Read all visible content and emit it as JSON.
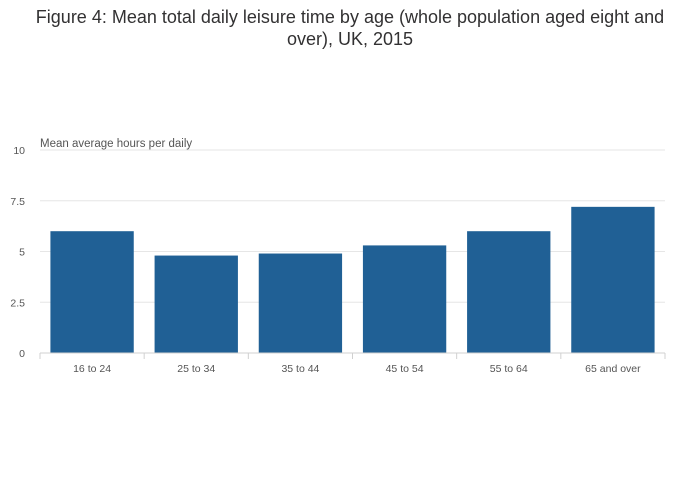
{
  "chart_data": {
    "type": "bar",
    "title": "Figure 4: Mean total daily leisure time by age (whole population aged eight and over), UK, 2015",
    "xlabel": "",
    "ylabel": "Mean average hours per daily",
    "categories": [
      "16 to 24",
      "25 to 34",
      "35 to 44",
      "45 to 54",
      "55 to 64",
      "65 and over"
    ],
    "values": [
      6.0,
      4.8,
      4.9,
      5.3,
      6.0,
      7.2
    ],
    "ylim": [
      0,
      10
    ],
    "yticks": [
      0,
      2.5,
      5,
      7.5,
      10
    ],
    "ytick_labels": [
      "0",
      "2.5",
      "5",
      "7.5",
      "10"
    ],
    "bar_color": "#206095",
    "grid": true
  }
}
